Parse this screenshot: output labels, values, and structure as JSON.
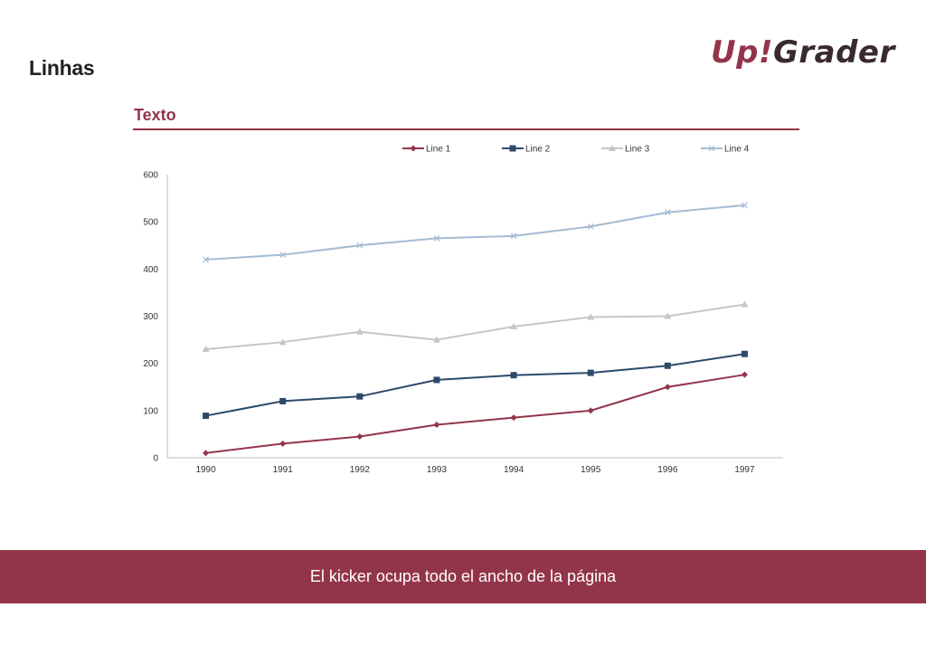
{
  "page": {
    "title": "Linhas",
    "section_title": "Texto",
    "footer_text": "El kicker ocupa todo el ancho de la página"
  },
  "logo": {
    "part1": "Up!",
    "part2": "Grader",
    "color": "#93354a"
  },
  "colors": {
    "accent": "#93354a",
    "footer_bg": "#93354a"
  },
  "chart_data": {
    "type": "line",
    "title": "",
    "xlabel": "",
    "ylabel": "",
    "categories": [
      "1990",
      "1991",
      "1992",
      "1993",
      "1994",
      "1995",
      "1996",
      "1997"
    ],
    "ylim": [
      0,
      600
    ],
    "yticks": [
      "0",
      "100",
      "200",
      "300",
      "400",
      "500",
      "600"
    ],
    "grid": false,
    "legend_position": "top",
    "series": [
      {
        "name": "Line 1",
        "color": "#93354a",
        "marker": "diamond",
        "values": [
          10,
          30,
          45,
          70,
          85,
          100,
          150,
          176
        ]
      },
      {
        "name": "Line 2",
        "color": "#2d4a6b",
        "marker": "square",
        "values": [
          89,
          120,
          130,
          165,
          175,
          180,
          195,
          220
        ]
      },
      {
        "name": "Line 3",
        "color": "#c6c6c6",
        "marker": "triangle",
        "values": [
          230,
          245,
          267,
          250,
          278,
          298,
          300,
          325
        ]
      },
      {
        "name": "Line 4",
        "color": "#a4bbd3",
        "marker": "x",
        "values": [
          420,
          430,
          450,
          465,
          470,
          490,
          520,
          535
        ]
      }
    ]
  }
}
